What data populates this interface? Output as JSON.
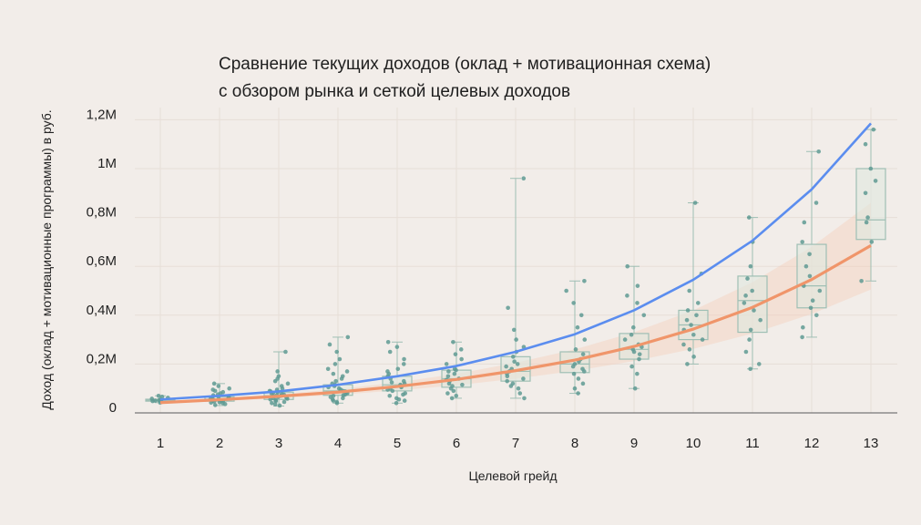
{
  "chart_data": {
    "type": "box+scatter+line",
    "title": [
      "Сравнение текущих доходов (оклад + мотивационная схема)",
      "с обзором рынка и сеткой целевых доходов"
    ],
    "xlabel": "Целевой грейд",
    "ylabel": "Доход (оклад + мотивационные программы) в руб.",
    "categories": [
      1,
      2,
      3,
      4,
      5,
      6,
      7,
      8,
      9,
      10,
      11,
      12,
      13
    ],
    "ylim": [
      0,
      1250000
    ],
    "yticks": [
      0,
      200000,
      400000,
      600000,
      800000,
      1000000,
      1200000
    ],
    "ytick_labels": [
      "0",
      "0,2M",
      "0,4M",
      "0,6M",
      "0,8M",
      "1M",
      "1,2M"
    ],
    "grid": true,
    "colors": {
      "background": "#f2ede9",
      "market_line": "#5b8def",
      "target_line": "#f0956a",
      "target_band": "#f6c9b3",
      "points": "#5f9a93",
      "box_fill": "#dfe8df",
      "box_stroke": "#9fbfb4",
      "grid": "#e7ded8",
      "axis": "#777777"
    },
    "series": [
      {
        "kind": "line",
        "values": [
          55000,
          70000,
          88000,
          115000,
          150000,
          192000,
          250000,
          322000,
          420000,
          545000,
          705000,
          915000,
          1185000
        ]
      },
      {
        "kind": "line",
        "values": [
          42000,
          54000,
          68000,
          85000,
          108000,
          137000,
          173000,
          216000,
          272000,
          343000,
          432000,
          546000,
          685000
        ],
        "band_low": [
          38000,
          48000,
          60000,
          74000,
          92000,
          113000,
          140000,
          172000,
          212000,
          262000,
          325000,
          405000,
          505000
        ],
        "band_high": [
          47000,
          61000,
          77000,
          97000,
          125000,
          160000,
          205000,
          260000,
          330000,
          420000,
          535000,
          680000,
          860000
        ]
      }
    ],
    "boxes": [
      {
        "grade": 1,
        "q1": 48000,
        "median": 52000,
        "q3": 56000,
        "min": 42000,
        "max": 70000
      },
      {
        "grade": 2,
        "q1": 48000,
        "median": 56000,
        "q3": 66000,
        "min": 30000,
        "max": 120000
      },
      {
        "grade": 3,
        "q1": 55000,
        "median": 70000,
        "q3": 85000,
        "min": 28000,
        "max": 250000
      },
      {
        "grade": 4,
        "q1": 72000,
        "median": 90000,
        "q3": 115000,
        "min": 40000,
        "max": 310000
      },
      {
        "grade": 5,
        "q1": 90000,
        "median": 115000,
        "q3": 150000,
        "min": 40000,
        "max": 290000
      },
      {
        "grade": 6,
        "q1": 105000,
        "median": 140000,
        "q3": 175000,
        "min": 60000,
        "max": 290000
      },
      {
        "grade": 7,
        "q1": 130000,
        "median": 170000,
        "q3": 230000,
        "min": 60000,
        "max": 960000
      },
      {
        "grade": 8,
        "q1": 165000,
        "median": 200000,
        "q3": 250000,
        "min": 80000,
        "max": 540000
      },
      {
        "grade": 9,
        "q1": 220000,
        "median": 260000,
        "q3": 325000,
        "min": 100000,
        "max": 600000
      },
      {
        "grade": 10,
        "q1": 300000,
        "median": 360000,
        "q3": 420000,
        "min": 200000,
        "max": 860000
      },
      {
        "grade": 11,
        "q1": 330000,
        "median": 460000,
        "q3": 560000,
        "min": 180000,
        "max": 800000
      },
      {
        "grade": 12,
        "q1": 430000,
        "median": 520000,
        "q3": 690000,
        "min": 310000,
        "max": 1070000
      },
      {
        "grade": 13,
        "q1": 710000,
        "median": 790000,
        "q3": 1000000,
        "min": 540000,
        "max": 1160000
      }
    ],
    "points": {
      "1": [
        42000,
        45000,
        48000,
        50000,
        52000,
        55000,
        58000,
        62000,
        66000,
        70000
      ],
      "2": [
        32000,
        36000,
        40000,
        42000,
        44000,
        46000,
        48000,
        50000,
        52000,
        54000,
        56000,
        58000,
        60000,
        62000,
        64000,
        66000,
        68000,
        72000,
        76000,
        80000,
        85000,
        90000,
        95000,
        100000,
        110000,
        120000
      ],
      "3": [
        30000,
        35000,
        40000,
        45000,
        48000,
        52000,
        55000,
        58000,
        60000,
        62000,
        65000,
        68000,
        70000,
        72000,
        75000,
        78000,
        80000,
        82000,
        85000,
        88000,
        90000,
        95000,
        100000,
        110000,
        120000,
        130000,
        140000,
        150000,
        170000,
        250000
      ],
      "4": [
        40000,
        45000,
        50000,
        55000,
        60000,
        65000,
        70000,
        72000,
        75000,
        80000,
        85000,
        88000,
        90000,
        95000,
        100000,
        105000,
        110000,
        115000,
        120000,
        130000,
        140000,
        150000,
        160000,
        170000,
        180000,
        200000,
        220000,
        250000,
        280000,
        310000
      ],
      "5": [
        40000,
        50000,
        55000,
        60000,
        70000,
        75000,
        80000,
        90000,
        95000,
        100000,
        105000,
        110000,
        115000,
        120000,
        125000,
        130000,
        140000,
        150000,
        160000,
        170000,
        180000,
        200000,
        220000,
        250000,
        270000,
        290000
      ],
      "6": [
        60000,
        70000,
        80000,
        90000,
        100000,
        110000,
        115000,
        120000,
        130000,
        135000,
        140000,
        150000,
        160000,
        170000,
        175000,
        180000,
        200000,
        220000,
        240000,
        260000,
        290000
      ],
      "7": [
        60000,
        80000,
        100000,
        110000,
        120000,
        130000,
        140000,
        150000,
        160000,
        170000,
        180000,
        190000,
        200000,
        210000,
        230000,
        250000,
        270000,
        300000,
        340000,
        430000,
        960000
      ],
      "8": [
        80000,
        100000,
        120000,
        140000,
        160000,
        170000,
        180000,
        190000,
        200000,
        210000,
        220000,
        240000,
        260000,
        300000,
        350000,
        400000,
        450000,
        500000,
        540000
      ],
      "9": [
        100000,
        160000,
        190000,
        220000,
        240000,
        250000,
        260000,
        270000,
        280000,
        300000,
        320000,
        350000,
        400000,
        450000,
        480000,
        520000,
        600000
      ],
      "10": [
        200000,
        230000,
        260000,
        280000,
        300000,
        320000,
        340000,
        360000,
        380000,
        400000,
        420000,
        450000,
        500000,
        570000,
        860000
      ],
      "11": [
        180000,
        200000,
        250000,
        300000,
        340000,
        380000,
        420000,
        450000,
        480000,
        500000,
        550000,
        600000,
        700000,
        800000
      ],
      "12": [
        310000,
        350000,
        400000,
        430000,
        460000,
        500000,
        520000,
        560000,
        600000,
        650000,
        700000,
        780000,
        860000,
        1070000
      ],
      "13": [
        540000,
        700000,
        780000,
        800000,
        900000,
        950000,
        1000000,
        1100000,
        1160000
      ]
    }
  }
}
